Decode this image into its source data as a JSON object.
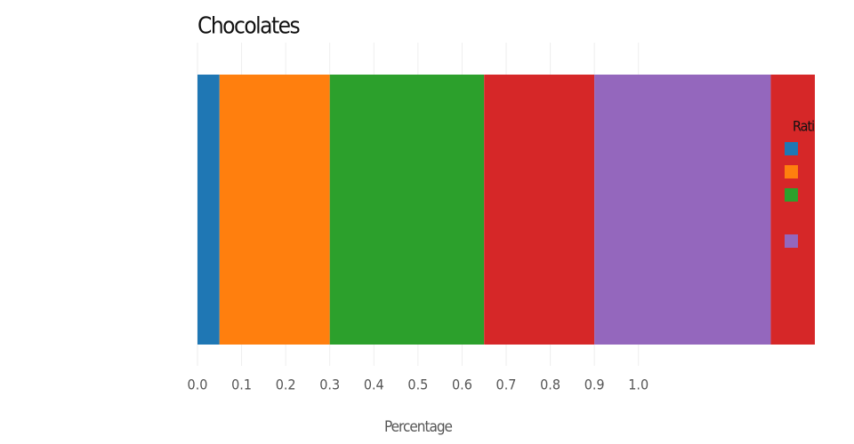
{
  "chart_data": {
    "type": "stacked-hbar",
    "title": "Chocolates",
    "x_label": "Percentage",
    "categories": [
      null
    ],
    "series": [
      {
        "color": "#1f77b4",
        "values": [
          0.05
        ]
      },
      {
        "color": "#ff7f0e",
        "values": [
          0.25
        ]
      },
      {
        "color": "#2ca02c",
        "values": [
          0.35
        ]
      },
      {
        "color": "#d62728",
        "values": [
          0.25
        ]
      },
      {
        "color": "#9467bd",
        "values": [
          0.4
        ]
      },
      {
        "color": "#d62728",
        "values": [
          0.1
        ]
      }
    ],
    "xlim": [
      0,
      1.4
    ],
    "xticks": [
      {
        "value": 0,
        "label": "0.0"
      },
      0.1,
      0.2,
      0.3,
      0.4,
      0.5,
      0.6,
      0.7,
      0.8,
      0.9,
      {
        "value": 1,
        "label": "1.0"
      }
    ],
    "grid": true,
    "legend": {
      "title": "Rati",
      "colors": [
        "#1f77b4",
        "#ff7f0e",
        "#2ca02c",
        null,
        "#9467bd"
      ]
    }
  }
}
